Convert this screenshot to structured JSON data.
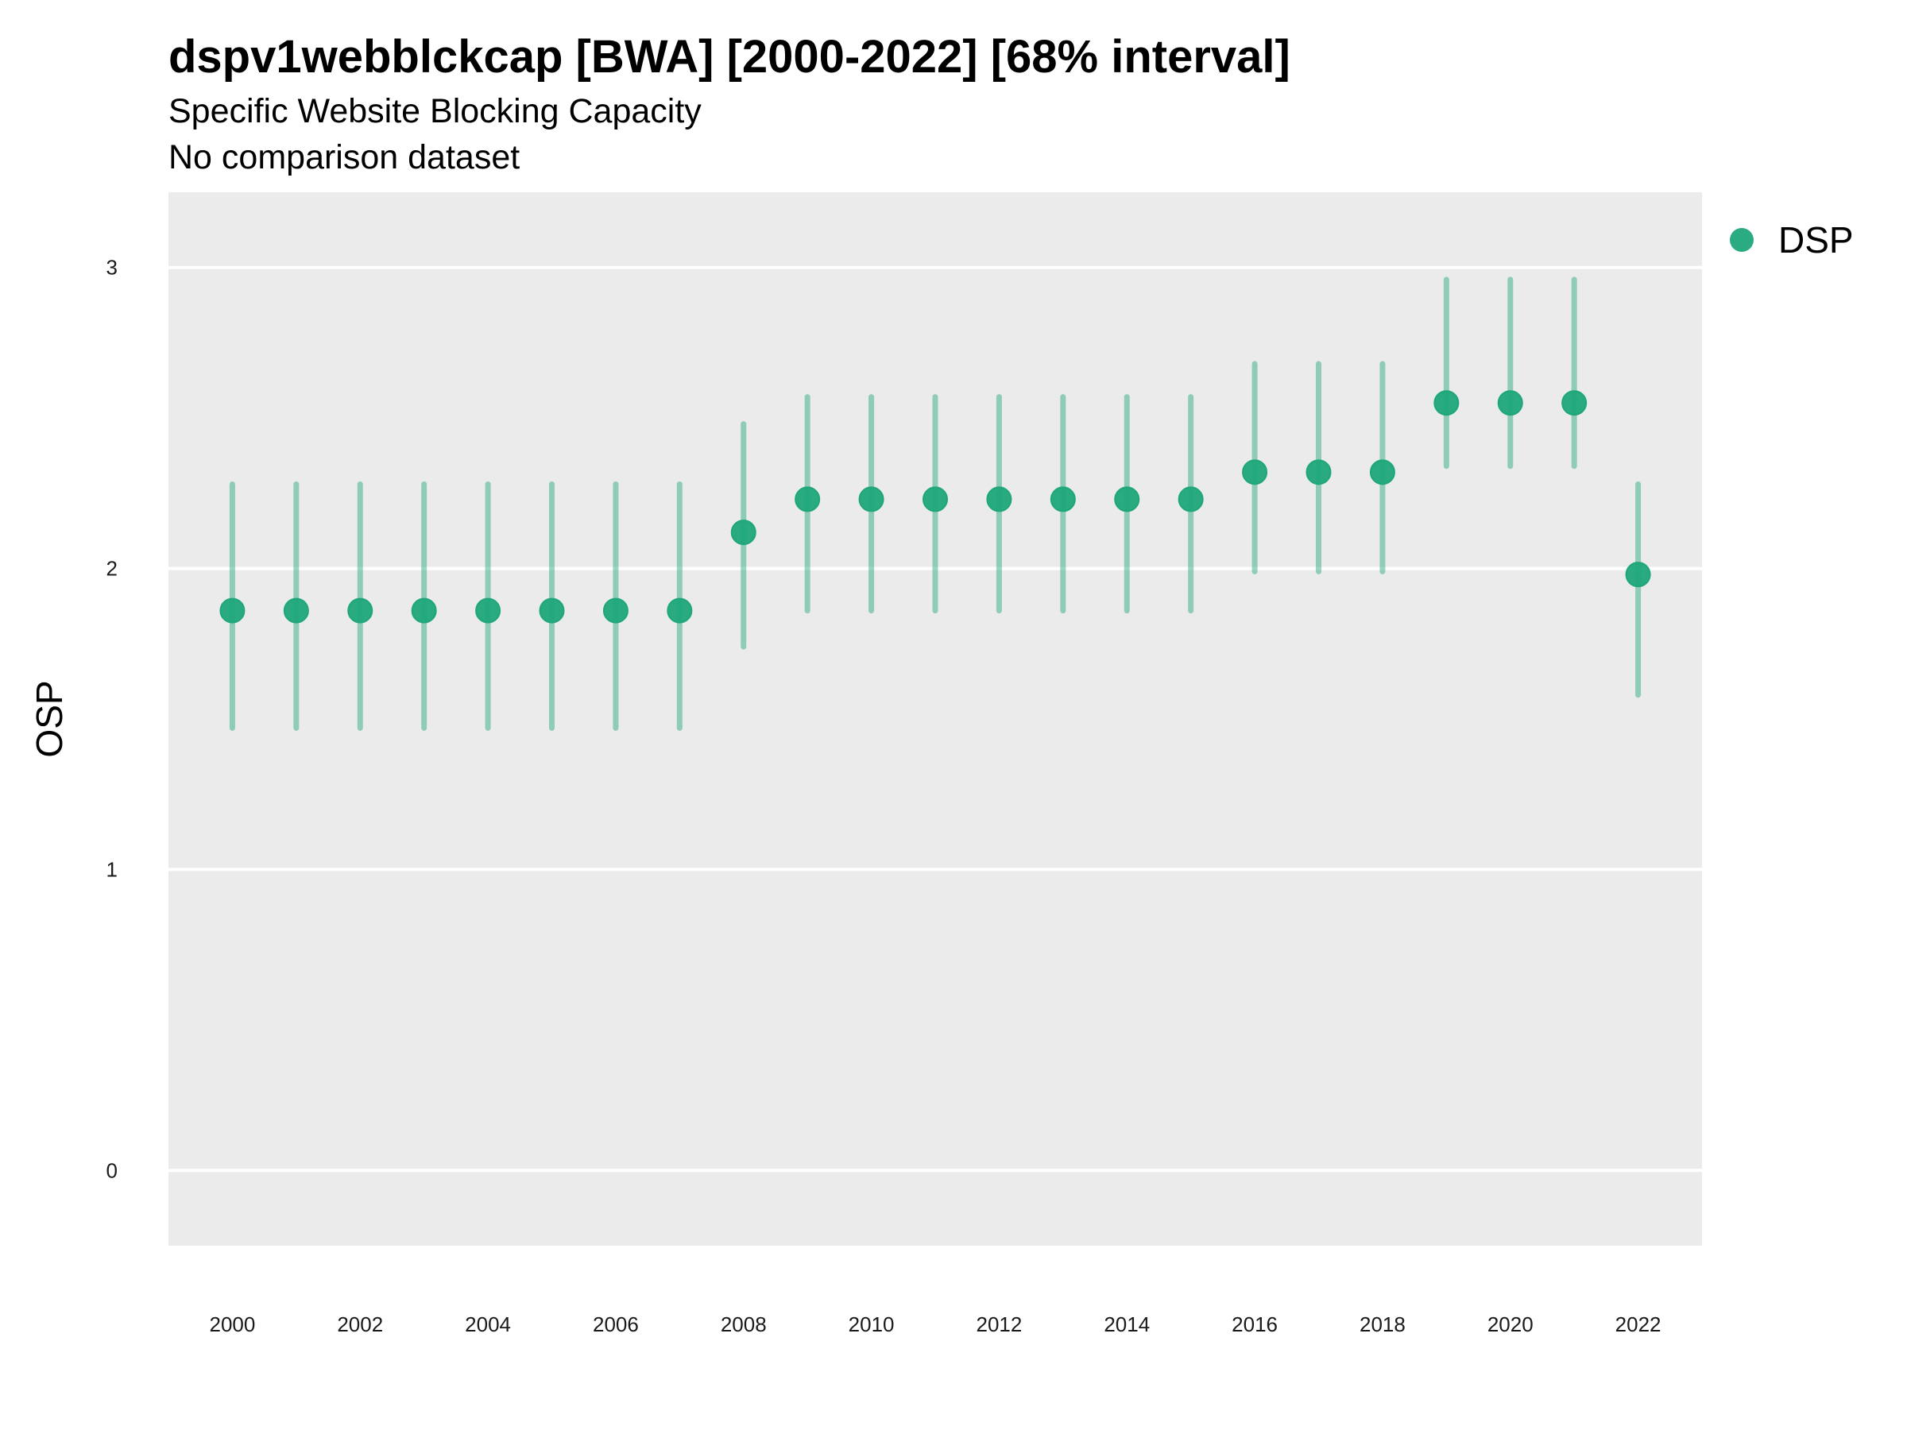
{
  "chart_data": {
    "type": "scatter",
    "title": "dspv1webblckcap [BWA] [2000-2022] [68% interval]",
    "subtitle": [
      "Specific Website Blocking Capacity",
      "No comparison dataset"
    ],
    "xlabel": "",
    "ylabel": "OSP",
    "ylim": [
      -0.25,
      3.25
    ],
    "yticks": [
      0,
      1,
      2,
      3
    ],
    "xlim": [
      1999,
      2023
    ],
    "xticks": [
      2000,
      2002,
      2004,
      2006,
      2008,
      2010,
      2012,
      2014,
      2016,
      2018,
      2020,
      2022
    ],
    "grid": true,
    "legend_position": "right",
    "series": [
      {
        "name": "DSP",
        "color": "#1fa67a",
        "points": [
          {
            "x": 2000,
            "y": 1.86,
            "low": 1.47,
            "high": 2.28
          },
          {
            "x": 2001,
            "y": 1.86,
            "low": 1.47,
            "high": 2.28
          },
          {
            "x": 2002,
            "y": 1.86,
            "low": 1.47,
            "high": 2.28
          },
          {
            "x": 2003,
            "y": 1.86,
            "low": 1.47,
            "high": 2.28
          },
          {
            "x": 2004,
            "y": 1.86,
            "low": 1.47,
            "high": 2.28
          },
          {
            "x": 2005,
            "y": 1.86,
            "low": 1.47,
            "high": 2.28
          },
          {
            "x": 2006,
            "y": 1.86,
            "low": 1.47,
            "high": 2.28
          },
          {
            "x": 2007,
            "y": 1.86,
            "low": 1.47,
            "high": 2.28
          },
          {
            "x": 2008,
            "y": 2.12,
            "low": 1.74,
            "high": 2.48
          },
          {
            "x": 2009,
            "y": 2.23,
            "low": 1.86,
            "high": 2.57
          },
          {
            "x": 2010,
            "y": 2.23,
            "low": 1.86,
            "high": 2.57
          },
          {
            "x": 2011,
            "y": 2.23,
            "low": 1.86,
            "high": 2.57
          },
          {
            "x": 2012,
            "y": 2.23,
            "low": 1.86,
            "high": 2.57
          },
          {
            "x": 2013,
            "y": 2.23,
            "low": 1.86,
            "high": 2.57
          },
          {
            "x": 2014,
            "y": 2.23,
            "low": 1.86,
            "high": 2.57
          },
          {
            "x": 2015,
            "y": 2.23,
            "low": 1.86,
            "high": 2.57
          },
          {
            "x": 2016,
            "y": 2.32,
            "low": 1.99,
            "high": 2.68
          },
          {
            "x": 2017,
            "y": 2.32,
            "low": 1.99,
            "high": 2.68
          },
          {
            "x": 2018,
            "y": 2.32,
            "low": 1.99,
            "high": 2.68
          },
          {
            "x": 2019,
            "y": 2.55,
            "low": 2.34,
            "high": 2.96
          },
          {
            "x": 2020,
            "y": 2.55,
            "low": 2.34,
            "high": 2.96
          },
          {
            "x": 2021,
            "y": 2.55,
            "low": 2.34,
            "high": 2.96
          },
          {
            "x": 2022,
            "y": 1.98,
            "low": 1.58,
            "high": 2.28
          }
        ]
      }
    ]
  }
}
